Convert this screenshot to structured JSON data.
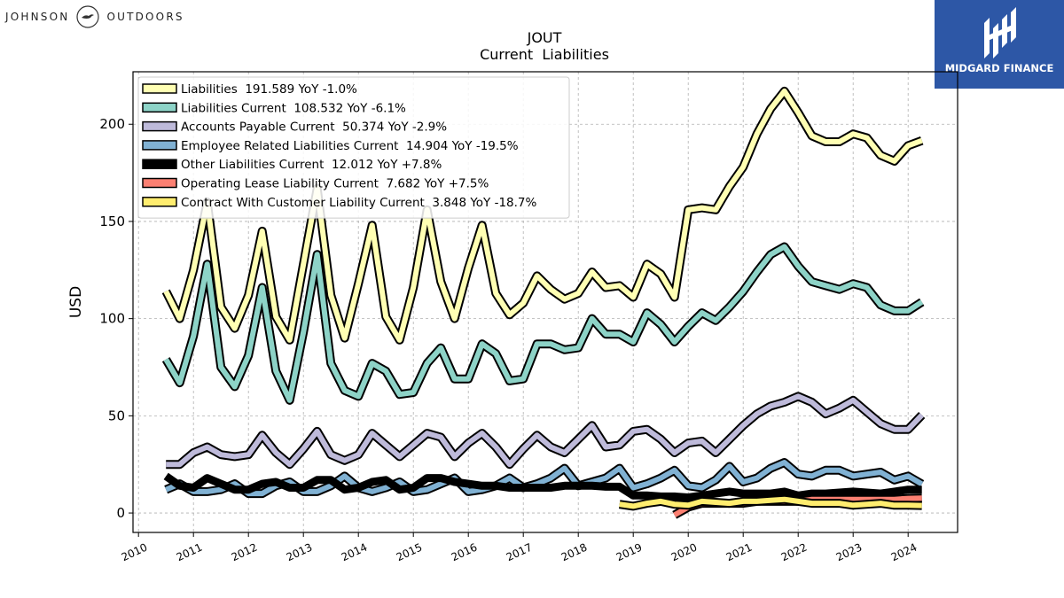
{
  "header": {
    "company_left": "JOHNSON",
    "company_right": "OUTDOORS",
    "brand": "MIDGARD FINANCE"
  },
  "chart_data": {
    "type": "line",
    "title": "JOUT",
    "subtitle": "Current  Liabilities",
    "ylabel": "USD",
    "xlabel": "",
    "xlim": [
      2009.9,
      2024.9
    ],
    "ylim": [
      -10,
      227
    ],
    "x_ticks": [
      "2010",
      "2011",
      "2012",
      "2013",
      "2014",
      "2015",
      "2016",
      "2017",
      "2018",
      "2019",
      "2020",
      "2021",
      "2022",
      "2023",
      "2024"
    ],
    "y_ticks": [
      0,
      50,
      100,
      150,
      200
    ],
    "grid": true,
    "legend_position": "top-left",
    "series": [
      {
        "name": "Liabilities  191.589 YoY -1.0%",
        "color": "#ffffb3",
        "width": 7,
        "x": [
          2010.5,
          2010.75,
          2011.0,
          2011.25,
          2011.5,
          2011.75,
          2012.0,
          2012.25,
          2012.5,
          2012.75,
          2013.0,
          2013.25,
          2013.5,
          2013.75,
          2014.0,
          2014.25,
          2014.5,
          2014.75,
          2015.0,
          2015.25,
          2015.5,
          2015.75,
          2016.0,
          2016.25,
          2016.5,
          2016.75,
          2017.0,
          2017.25,
          2017.5,
          2017.75,
          2018.0,
          2018.25,
          2018.5,
          2018.75,
          2019.0,
          2019.25,
          2019.5,
          2019.75,
          2020.0,
          2020.25,
          2020.5,
          2020.75,
          2021.0,
          2021.25,
          2021.5,
          2021.75,
          2022.0,
          2022.25,
          2022.5,
          2022.75,
          2023.0,
          2023.25,
          2023.5,
          2023.75,
          2024.0,
          2024.25
        ],
        "values": [
          114,
          100,
          125,
          160,
          106,
          95,
          112,
          145,
          101,
          89,
          128,
          167,
          112,
          90,
          118,
          148,
          101,
          89,
          116,
          156,
          119,
          100,
          126,
          148,
          113,
          102,
          108,
          122,
          115,
          110,
          113,
          124,
          116,
          117,
          111,
          128,
          123,
          111,
          156,
          157,
          156,
          168,
          178,
          195,
          208,
          217,
          206,
          194,
          191,
          191,
          195,
          193,
          184,
          181,
          189,
          191.589
        ]
      },
      {
        "name": "Liabilities Current  108.532 YoY -6.1%",
        "color": "#8dd3c7",
        "width": 7,
        "x": [
          2010.5,
          2010.75,
          2011.0,
          2011.25,
          2011.5,
          2011.75,
          2012.0,
          2012.25,
          2012.5,
          2012.75,
          2013.0,
          2013.25,
          2013.5,
          2013.75,
          2014.0,
          2014.25,
          2014.5,
          2014.75,
          2015.0,
          2015.25,
          2015.5,
          2015.75,
          2016.0,
          2016.25,
          2016.5,
          2016.75,
          2017.0,
          2017.25,
          2017.5,
          2017.75,
          2018.0,
          2018.25,
          2018.5,
          2018.75,
          2019.0,
          2019.25,
          2019.5,
          2019.75,
          2020.0,
          2020.25,
          2020.5,
          2020.75,
          2021.0,
          2021.25,
          2021.5,
          2021.75,
          2022.0,
          2022.25,
          2022.5,
          2022.75,
          2023.0,
          2023.25,
          2023.5,
          2023.75,
          2024.0,
          2024.25
        ],
        "values": [
          79,
          67,
          91,
          128,
          75,
          65,
          81,
          116,
          73,
          58,
          93,
          133,
          77,
          63,
          60,
          77,
          73,
          61,
          62,
          77,
          85,
          69,
          69,
          87,
          82,
          68,
          69,
          87,
          87,
          84,
          85,
          100,
          92,
          92,
          88,
          103,
          97,
          88,
          96,
          103,
          99,
          106,
          114,
          124,
          133,
          137,
          127,
          119,
          117,
          115,
          118,
          116,
          107,
          104,
          104,
          108.532
        ]
      },
      {
        "name": "Accounts Payable Current  50.374 YoY -2.9%",
        "color": "#bebada",
        "width": 7,
        "x": [
          2010.5,
          2010.75,
          2011.0,
          2011.25,
          2011.5,
          2011.75,
          2012.0,
          2012.25,
          2012.5,
          2012.75,
          2013.0,
          2013.25,
          2013.5,
          2013.75,
          2014.0,
          2014.25,
          2014.5,
          2014.75,
          2015.0,
          2015.25,
          2015.5,
          2015.75,
          2016.0,
          2016.25,
          2016.5,
          2016.75,
          2017.0,
          2017.25,
          2017.5,
          2017.75,
          2018.0,
          2018.25,
          2018.5,
          2018.75,
          2019.0,
          2019.25,
          2019.5,
          2019.75,
          2020.0,
          2020.25,
          2020.5,
          2020.75,
          2021.0,
          2021.25,
          2021.5,
          2021.75,
          2022.0,
          2022.25,
          2022.5,
          2022.75,
          2023.0,
          2023.25,
          2023.5,
          2023.75,
          2024.0,
          2024.25
        ],
        "values": [
          25,
          25,
          31,
          34,
          30,
          29,
          30,
          40,
          31,
          25,
          33,
          42,
          30,
          27,
          30,
          41,
          35,
          29,
          35,
          41,
          39,
          29,
          36,
          41,
          34,
          25,
          33,
          40,
          34,
          31,
          38,
          45,
          34,
          35,
          42,
          43,
          38,
          31,
          36,
          37,
          31,
          38,
          45,
          51,
          55,
          57,
          60,
          57,
          51,
          54,
          58,
          52,
          46,
          43,
          43,
          50.374
        ]
      },
      {
        "name": "Employee Related Liabilities Current  14.904 YoY -19.5%",
        "color": "#80b1d3",
        "width": 7,
        "x": [
          2010.5,
          2010.75,
          2011.0,
          2011.25,
          2011.5,
          2011.75,
          2012.0,
          2012.25,
          2012.5,
          2012.75,
          2013.0,
          2013.25,
          2013.5,
          2013.75,
          2014.0,
          2014.25,
          2014.5,
          2014.75,
          2015.0,
          2015.25,
          2015.5,
          2015.75,
          2016.0,
          2016.25,
          2016.5,
          2016.75,
          2017.0,
          2017.25,
          2017.5,
          2017.75,
          2018.0,
          2018.25,
          2018.5,
          2018.75,
          2019.0,
          2019.25,
          2019.5,
          2019.75,
          2020.0,
          2020.25,
          2020.5,
          2020.75,
          2021.0,
          2021.25,
          2021.5,
          2021.75,
          2022.0,
          2022.25,
          2022.5,
          2022.75,
          2023.0,
          2023.25,
          2023.5,
          2023.75,
          2024.0,
          2024.25
        ],
        "values": [
          12,
          15,
          11,
          11,
          12,
          15,
          10,
          10,
          14,
          16,
          11,
          11,
          14,
          19,
          13,
          11,
          13,
          16,
          11,
          12,
          15,
          18,
          11,
          12,
          14,
          18,
          13,
          15,
          18,
          23,
          14,
          16,
          18,
          23,
          13,
          15,
          18,
          22,
          14,
          13,
          17,
          24,
          16,
          18,
          23,
          26,
          20,
          19,
          22,
          22,
          19,
          20,
          21,
          17,
          19,
          14.904
        ]
      },
      {
        "name": "Other Liabilities Current  12.012 YoY +7.8%",
        "color": "#000000",
        "width": 9,
        "x": [
          2010.5,
          2010.75,
          2011.0,
          2011.25,
          2011.5,
          2011.75,
          2012.0,
          2012.25,
          2012.5,
          2012.75,
          2013.0,
          2013.25,
          2013.5,
          2013.75,
          2014.0,
          2014.25,
          2014.5,
          2014.75,
          2015.0,
          2015.25,
          2015.5,
          2015.75,
          2016.0,
          2016.25,
          2016.5,
          2016.75,
          2017.0,
          2017.25,
          2017.5,
          2017.75,
          2018.0,
          2018.25,
          2018.5,
          2018.75,
          2019.0,
          2019.25,
          2019.5,
          2019.75,
          2020.0,
          2020.25,
          2020.5,
          2020.75,
          2021.0,
          2021.25,
          2021.5,
          2021.75,
          2022.0,
          2022.25,
          2022.5,
          2022.75,
          2023.0,
          2023.25,
          2023.5,
          2023.75,
          2024.0,
          2024.25
        ],
        "values": [
          19,
          14,
          13,
          18,
          15,
          12,
          12,
          15,
          16,
          13,
          13,
          17,
          17,
          12,
          13,
          16,
          17,
          12,
          13,
          18,
          18,
          16,
          15,
          14,
          14,
          13,
          13,
          13,
          13,
          14,
          14,
          14,
          13.5,
          13.5,
          9,
          9,
          8.5,
          8.5,
          8,
          9,
          10,
          11,
          10,
          10,
          10,
          11,
          9,
          10,
          10,
          10.5,
          11,
          10.5,
          10,
          11,
          12,
          12.012
        ]
      },
      {
        "name": "Operating Lease Liability Current  7.682 YoY +7.5%",
        "color": "#fb8072",
        "width": 7,
        "x": [
          2019.75,
          2020.0,
          2020.25,
          2020.5,
          2020.75,
          2021.0,
          2021.25,
          2021.5,
          2021.75,
          2022.0,
          2022.25,
          2022.5,
          2022.75,
          2023.0,
          2023.25,
          2023.5,
          2023.75,
          2024.0,
          2024.25
        ],
        "values": [
          -1,
          3,
          5,
          5,
          5,
          5,
          6,
          6,
          6,
          6,
          7,
          7,
          7,
          7,
          7,
          7,
          7,
          7.5,
          7.682
        ]
      },
      {
        "name": "Contract With Customer Liability Current  3.848 YoY -18.7%",
        "color": "#ffed6f",
        "width": 7,
        "x": [
          2018.75,
          2019.0,
          2019.25,
          2019.5,
          2019.75,
          2020.0,
          2020.25,
          2020.5,
          2020.75,
          2021.0,
          2021.25,
          2021.5,
          2021.75,
          2022.0,
          2022.25,
          2022.5,
          2022.75,
          2023.0,
          2023.25,
          2023.5,
          2023.75,
          2024.0,
          2024.25
        ],
        "values": [
          4.5,
          3.5,
          5,
          6,
          4.5,
          4,
          6,
          5.5,
          5,
          6,
          6,
          6.5,
          7,
          6,
          5,
          5,
          5,
          4,
          4.5,
          5,
          4,
          4,
          3.848
        ]
      }
    ]
  }
}
